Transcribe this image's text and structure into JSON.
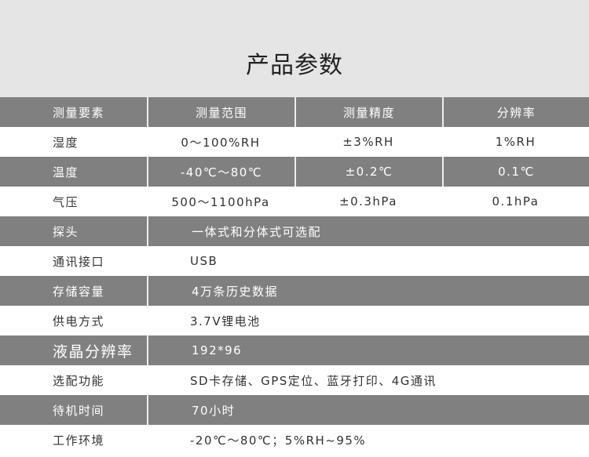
{
  "title": "产品参数",
  "header_row": [
    "测量要素",
    "测量范围",
    "测量精度",
    "分辨率"
  ],
  "measure_rows": [
    [
      "湿度",
      "0～100%RH",
      "±3%RH",
      "1%RH"
    ],
    [
      "温度",
      "-40℃～80℃",
      "±0.2℃",
      "0.1℃"
    ],
    [
      "气压",
      "500～1100hPa",
      "±0.3hPa",
      "0.1hPa"
    ]
  ],
  "spec_rows": [
    [
      "探头",
      "一体式和分体式可选配"
    ],
    [
      "通讯接口",
      "USB"
    ],
    [
      "存储容量",
      "4万条历史数据"
    ],
    [
      "供电方式",
      "3.7V锂电池"
    ],
    [
      "液晶分辨率",
      "192*96"
    ],
    [
      "选配功能",
      "SD卡存储、GPS定位、蓝牙打印、4G通讯"
    ],
    [
      "待机时间",
      "70小时"
    ],
    [
      "工作环境",
      "-20℃～80℃；5%RH~95%"
    ]
  ],
  "colors": {
    "header_bg": "#e5e5e5",
    "row_gray": "#808080",
    "row_white": "#ffffff"
  }
}
